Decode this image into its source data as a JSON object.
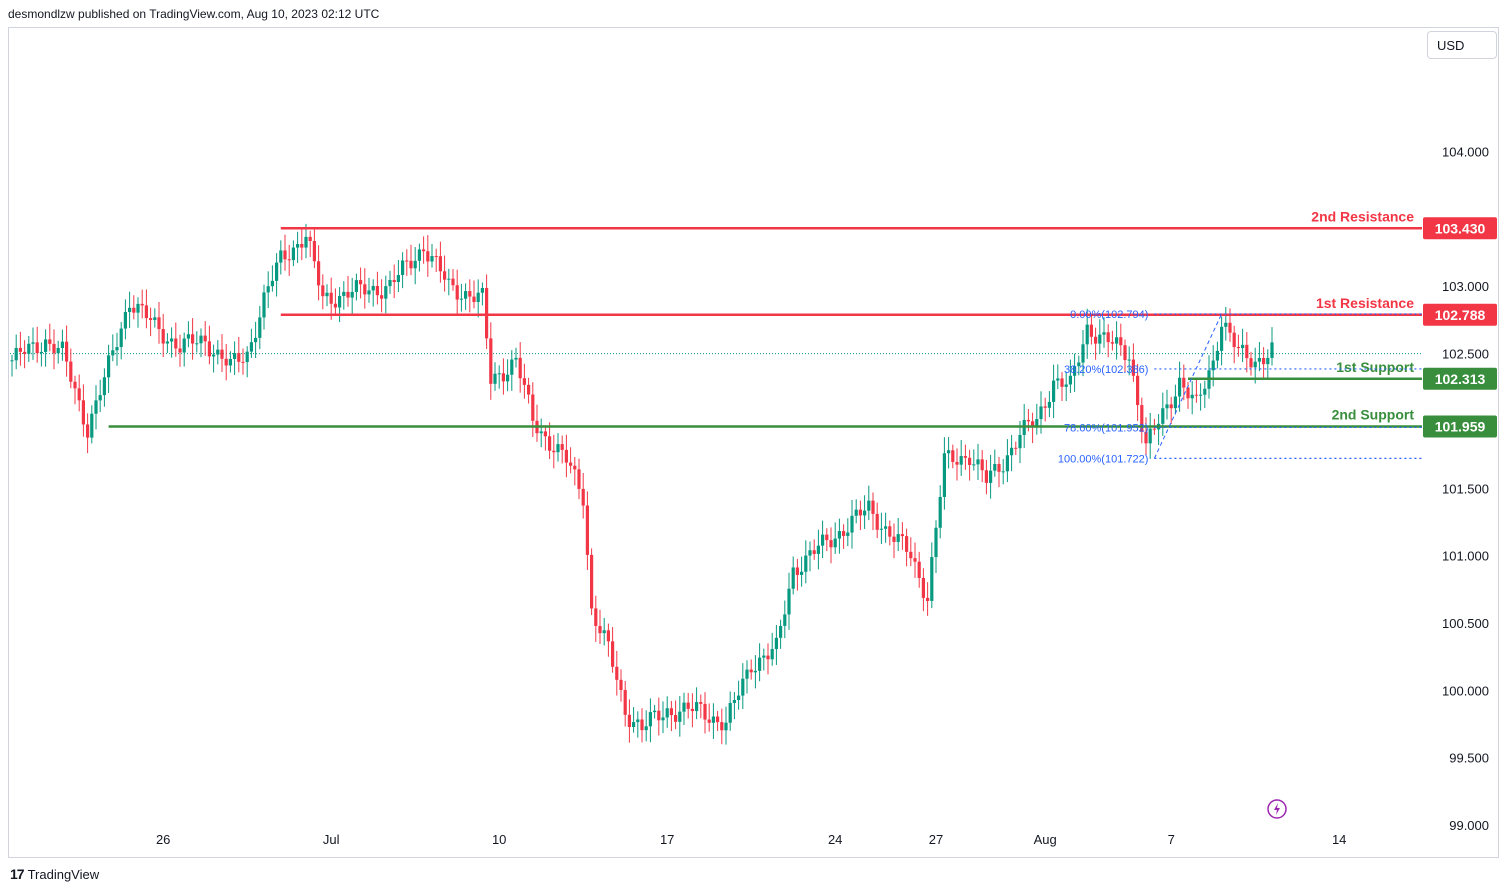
{
  "header": {
    "published": "desmondlzw published on TradingView.com, Aug 10, 2023 02:12 UTC"
  },
  "toolbar": {
    "currency": "USD"
  },
  "footer": {
    "brand": "TradingView",
    "logo_text": "17"
  },
  "icons": {
    "lightning": "lightning-icon",
    "logo": "tradingview-logo-icon"
  },
  "colors": {
    "up": "#089981",
    "down": "#f23645",
    "resistance": "#f23645",
    "support": "#388e3c",
    "fib": "#2962ff"
  },
  "chart_data": {
    "type": "candlestick",
    "title": "",
    "ylim": [
      98.9,
      104.5
    ],
    "y_ticks": [
      "104.000",
      "103.000",
      "102.500",
      "101.500",
      "101.000",
      "100.500",
      "100.000",
      "99.500",
      "99.000"
    ],
    "y_tick_values": [
      104.0,
      103.0,
      102.5,
      101.5,
      101.0,
      100.5,
      100.0,
      99.5,
      99.0
    ],
    "x_ticks": [
      "26",
      "Jul",
      "10",
      "17",
      "24",
      "27",
      "Aug",
      "7",
      "14"
    ],
    "x_tick_index": [
      36,
      76,
      116,
      156,
      196,
      220,
      246,
      276,
      316
    ],
    "levels": [
      {
        "name": "2nd Resistance",
        "value": 103.43,
        "label": "103.430",
        "type": "resistance"
      },
      {
        "name": "1st Resistance",
        "value": 102.788,
        "label": "102.788",
        "type": "resistance"
      },
      {
        "name": "1st Support",
        "value": 102.313,
        "label": "102.313",
        "type": "support"
      },
      {
        "name": "2nd Support",
        "value": 101.959,
        "label": "101.959",
        "type": "support"
      }
    ],
    "fib_levels": [
      {
        "label": "0.00%(102.794)",
        "value": 102.794
      },
      {
        "label": "38.20%(102.386)",
        "value": 102.386
      },
      {
        "label": "78.60%(101.952)",
        "value": 101.952
      },
      {
        "label": "100.00%(101.722)",
        "value": 101.722
      }
    ],
    "current_price": 102.5,
    "anchors": [
      [
        0,
        102.45
      ],
      [
        8,
        102.6
      ],
      [
        12,
        102.5
      ],
      [
        18,
        101.95
      ],
      [
        22,
        102.3
      ],
      [
        28,
        102.9
      ],
      [
        34,
        102.7
      ],
      [
        40,
        102.55
      ],
      [
        46,
        102.6
      ],
      [
        52,
        102.4
      ],
      [
        56,
        102.5
      ],
      [
        60,
        102.9
      ],
      [
        64,
        103.2
      ],
      [
        70,
        103.38
      ],
      [
        74,
        102.9
      ],
      [
        80,
        102.95
      ],
      [
        90,
        103.0
      ],
      [
        98,
        103.3
      ],
      [
        104,
        103.0
      ],
      [
        112,
        102.9
      ],
      [
        114,
        102.3
      ],
      [
        120,
        102.45
      ],
      [
        124,
        102.0
      ],
      [
        128,
        101.85
      ],
      [
        132,
        101.7
      ],
      [
        136,
        101.45
      ],
      [
        138,
        100.6
      ],
      [
        142,
        100.3
      ],
      [
        146,
        99.85
      ],
      [
        150,
        99.72
      ],
      [
        156,
        99.85
      ],
      [
        164,
        99.85
      ],
      [
        170,
        99.75
      ],
      [
        176,
        100.2
      ],
      [
        182,
        100.3
      ],
      [
        186,
        100.9
      ],
      [
        192,
        101.05
      ],
      [
        198,
        101.2
      ],
      [
        204,
        101.35
      ],
      [
        208,
        101.2
      ],
      [
        214,
        101.0
      ],
      [
        218,
        100.7
      ],
      [
        222,
        101.7
      ],
      [
        228,
        101.75
      ],
      [
        232,
        101.55
      ],
      [
        236,
        101.7
      ],
      [
        240,
        101.9
      ],
      [
        244,
        102.0
      ],
      [
        248,
        102.3
      ],
      [
        252,
        102.25
      ],
      [
        256,
        102.7
      ],
      [
        260,
        102.6
      ],
      [
        266,
        102.5
      ],
      [
        270,
        101.8
      ],
      [
        274,
        102.05
      ],
      [
        278,
        102.3
      ],
      [
        282,
        102.1
      ],
      [
        286,
        102.45
      ],
      [
        288,
        102.75
      ],
      [
        292,
        102.5
      ],
      [
        296,
        102.45
      ],
      [
        300,
        102.52
      ]
    ]
  }
}
